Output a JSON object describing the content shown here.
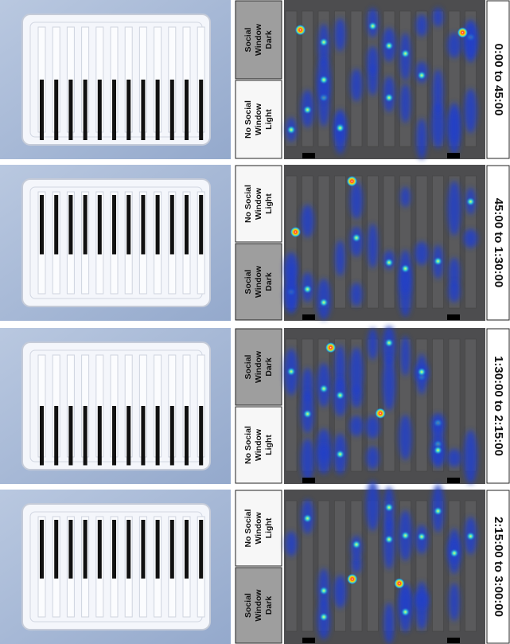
{
  "panels": [
    {
      "time": "0:00 to 45:00",
      "top": {
        "lines": [
          "Social",
          "Window",
          "Dark"
        ]
      },
      "bottom": {
        "lines": [
          "No Social",
          "Window",
          "Light"
        ]
      }
    },
    {
      "time": "45:00 to 1:30:00",
      "top": {
        "lines": [
          "No Social",
          "Window",
          "Light"
        ]
      },
      "bottom": {
        "lines": [
          "Social",
          "Window",
          "Dark"
        ]
      }
    },
    {
      "time": "1:30:00 to 2:15:00",
      "top": {
        "lines": [
          "Social",
          "Window",
          "Dark"
        ]
      },
      "bottom": {
        "lines": [
          "No Social",
          "Window",
          "Light"
        ]
      }
    },
    {
      "time": "2:15:00 to 3:00:00",
      "top": {
        "lines": [
          "No Social",
          "Window",
          "Light"
        ]
      },
      "bottom": {
        "lines": [
          "Social",
          "Window",
          "Dark"
        ]
      }
    }
  ]
}
